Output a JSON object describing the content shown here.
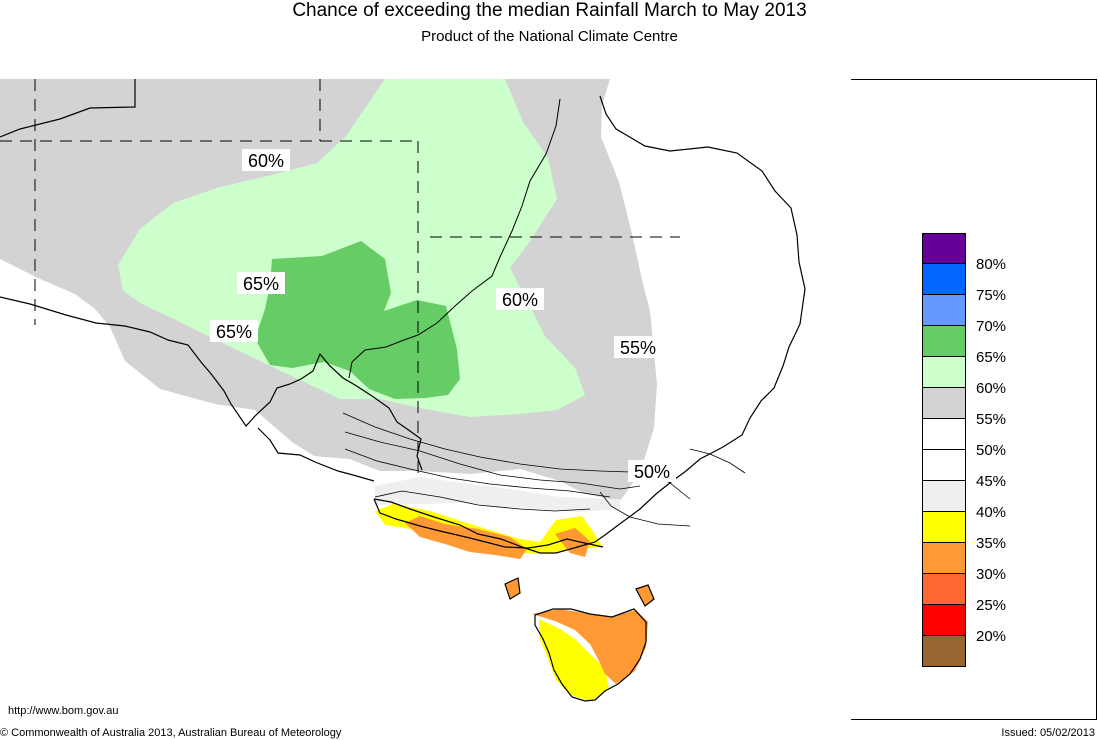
{
  "header": {
    "title": "Chance of exceeding the median Rainfall March to May 2013",
    "subtitle": "Product of the National Climate Centre"
  },
  "footer": {
    "url": "http://www.bom.gov.au",
    "copyright": "© Commonwealth of Australia 2013, Australian Bureau of Meteorology",
    "issued": "Issued: 05/02/2013"
  },
  "map": {
    "region": "South-eastern Australia",
    "contour_labels": [
      "60%",
      "65%",
      "65%",
      "60%",
      "55%",
      "50%"
    ],
    "zone_colors": {
      "land_outline": "#000000",
      "gray_55_60": "#d3d3d3",
      "light_green_60_65": "#ccffcc",
      "green_65_70": "#66cc66",
      "light_gray_45_50": "#efefef",
      "yellow_35_40": "#ffff00",
      "orange_30_35": "#ff9933"
    }
  },
  "legend": {
    "items": [
      {
        "label": "80%",
        "color": "#660099"
      },
      {
        "label": "75%",
        "color": "#0066ff"
      },
      {
        "label": "70%",
        "color": "#6699ff"
      },
      {
        "label": "65%",
        "color": "#66cc66"
      },
      {
        "label": "60%",
        "color": "#ccffcc"
      },
      {
        "label": "55%",
        "color": "#d3d3d3"
      },
      {
        "label": "50%",
        "color": "#ffffff"
      },
      {
        "label": "45%",
        "color": "#ffffff"
      },
      {
        "label": "40%",
        "color": "#efefef"
      },
      {
        "label": "35%",
        "color": "#ffff00"
      },
      {
        "label": "30%",
        "color": "#ff9933"
      },
      {
        "label": "25%",
        "color": "#ff6633"
      },
      {
        "label": "20%",
        "color": "#ff0000"
      },
      {
        "label": "",
        "color": "#996633"
      }
    ]
  }
}
